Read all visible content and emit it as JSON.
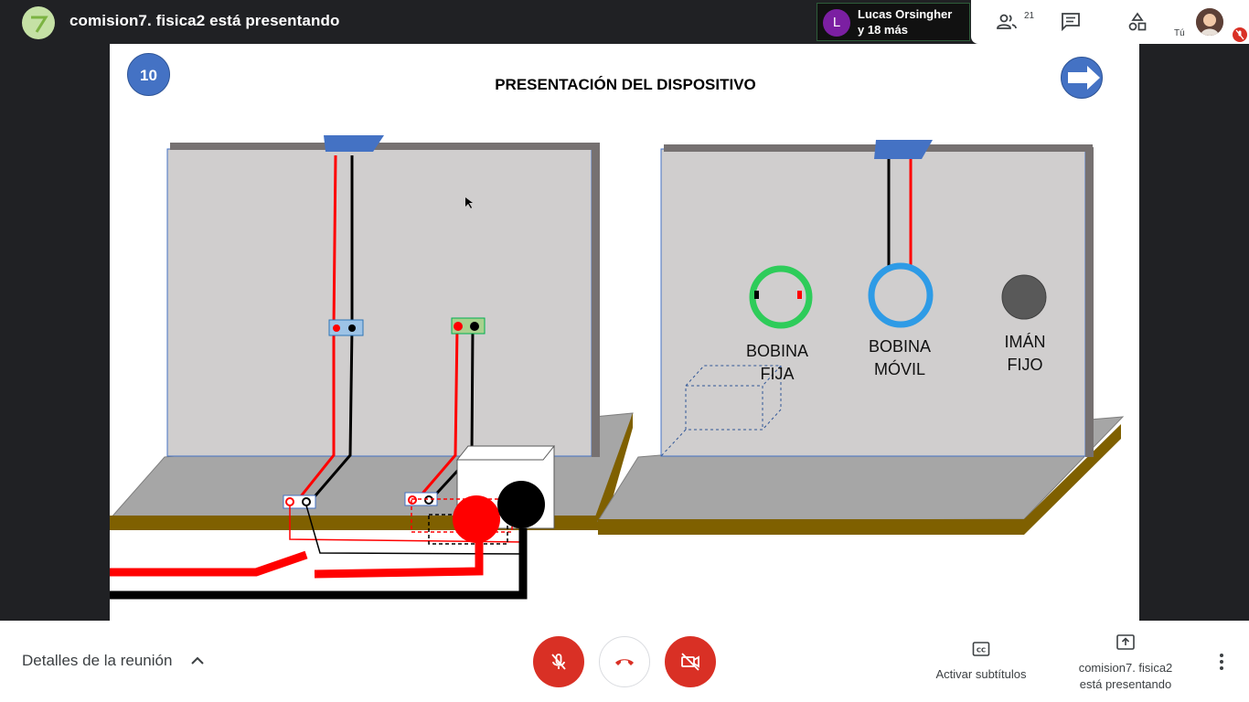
{
  "topbar": {
    "presenting_title": "comision7. fisica2 está presentando",
    "speaker_initial": "L",
    "speaker_line1": "Lucas Orsingher",
    "speaker_line2": "y 18 más",
    "people_count": "21",
    "self_label": "Tú"
  },
  "slide": {
    "number": "10",
    "title": "PRESENTACIÓN DEL DISPOSITIVO",
    "labels": {
      "bobina_fija_1": "BOBINA",
      "bobina_fija_2": "FIJA",
      "bobina_movil_1": "BOBINA",
      "bobina_movil_2": "MÓVIL",
      "iman_fijo_1": "IMÁN",
      "iman_fijo_2": "FIJO"
    },
    "colors": {
      "slide_number_bg": "#4472c4",
      "panel": "#d0cece",
      "base": "#a6a6a6",
      "base_edge": "#7f6000",
      "wire_red": "#ff0000",
      "wire_black": "#000000",
      "fixed_coil": "#2ecc5a",
      "moving_coil": "#2e9be6",
      "magnet": "#595959"
    }
  },
  "bottombar": {
    "details_label": "Detalles de la reunión",
    "cc_label": "Activar subtítulos",
    "presenting_line1": "comision7. fisica2",
    "presenting_line2": "está presentando"
  },
  "icons": {
    "people": "people-icon",
    "chat": "chat-icon",
    "activities": "shapes-icon",
    "mic_off": "mic-off-icon",
    "hangup": "phone-hangup-icon",
    "camera_off": "camera-off-icon",
    "captions": "cc-icon",
    "present": "present-icon",
    "more": "more-vert-icon",
    "next": "arrow-right-icon"
  }
}
